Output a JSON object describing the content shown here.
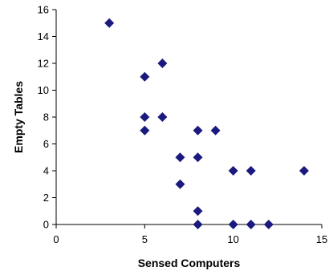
{
  "chart_data": {
    "type": "scatter",
    "title": "",
    "xlabel": "Sensed Computers",
    "ylabel": "Empty Tables",
    "xlim": [
      0,
      15
    ],
    "ylim": [
      0,
      16
    ],
    "xticks": [
      "0",
      "5",
      "10",
      "15"
    ],
    "yticks": [
      "0",
      "2",
      "4",
      "6",
      "8",
      "10",
      "12",
      "14",
      "16"
    ],
    "grid": false,
    "legend": "none",
    "marker": "diamond",
    "marker_color": "#1a1a7e",
    "points": [
      {
        "x": 3,
        "y": 15
      },
      {
        "x": 5,
        "y": 11
      },
      {
        "x": 6,
        "y": 12
      },
      {
        "x": 5,
        "y": 8
      },
      {
        "x": 6,
        "y": 8
      },
      {
        "x": 5,
        "y": 7
      },
      {
        "x": 8,
        "y": 7
      },
      {
        "x": 9,
        "y": 7
      },
      {
        "x": 7,
        "y": 5
      },
      {
        "x": 8,
        "y": 5
      },
      {
        "x": 10,
        "y": 4
      },
      {
        "x": 11,
        "y": 4
      },
      {
        "x": 14,
        "y": 4
      },
      {
        "x": 7,
        "y": 3
      },
      {
        "x": 8,
        "y": 1
      },
      {
        "x": 8,
        "y": 0
      },
      {
        "x": 10,
        "y": 0
      },
      {
        "x": 11,
        "y": 0
      },
      {
        "x": 12,
        "y": 0
      }
    ]
  }
}
